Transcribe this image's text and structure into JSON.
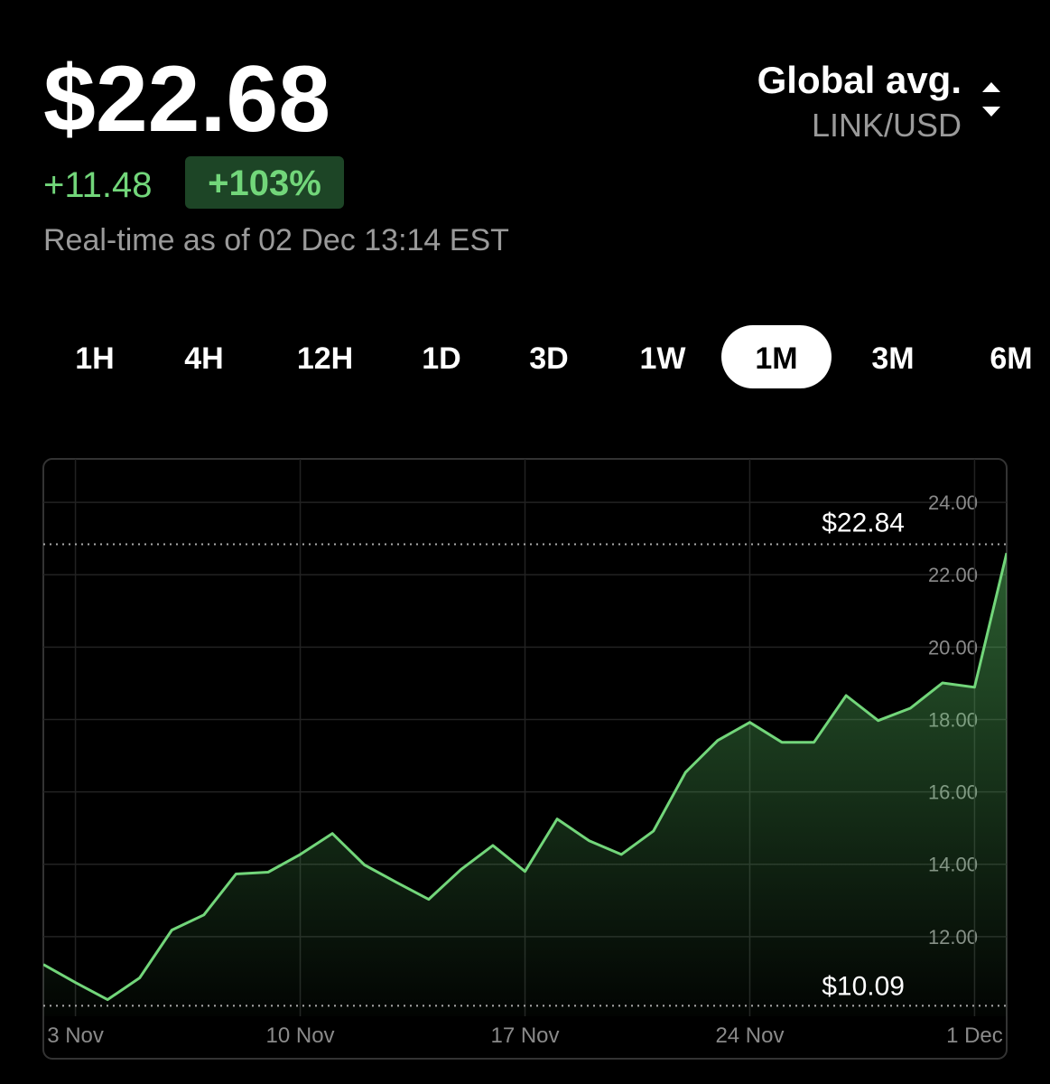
{
  "header": {
    "price": "$22.68",
    "change": "+11.48",
    "change_pct": "+103%",
    "timestamp": "Real-time as of 02 Dec 13:14 EST",
    "source": "Global avg.",
    "pair": "LINK/USD"
  },
  "tabs": {
    "items": [
      "1H",
      "4H",
      "12H",
      "1D",
      "3D",
      "1W",
      "1M",
      "3M",
      "6M"
    ],
    "selected": 6
  },
  "chart_data": {
    "type": "area",
    "categories": [
      null,
      "3 Nov",
      null,
      null,
      null,
      null,
      null,
      null,
      "10 Nov",
      null,
      null,
      null,
      null,
      null,
      null,
      "17 Nov",
      null,
      null,
      null,
      null,
      null,
      null,
      "24 Nov",
      null,
      null,
      null,
      null,
      null,
      null,
      "1 Dec",
      null
    ],
    "values": [
      11.23,
      10.73,
      10.26,
      10.86,
      12.18,
      12.6,
      13.73,
      13.78,
      14.27,
      14.85,
      13.98,
      13.5,
      13.03,
      13.85,
      14.52,
      13.8,
      15.25,
      14.65,
      14.27,
      14.92,
      16.54,
      17.42,
      17.92,
      17.37,
      17.37,
      18.66,
      17.97,
      18.31,
      19.01,
      18.89,
      22.6
    ],
    "color": "#72d67a",
    "ylim": [
      9.8,
      25.2
    ],
    "yticks": [
      {
        "value": 12,
        "label": "12.00"
      },
      {
        "value": 14,
        "label": "14.00"
      },
      {
        "value": 16,
        "label": "16.00"
      },
      {
        "value": 18,
        "label": "18.00"
      },
      {
        "value": 20,
        "label": "20.00"
      },
      {
        "value": 22,
        "label": "22.00"
      },
      {
        "value": 24,
        "label": "24.00"
      }
    ],
    "high": {
      "value": 22.84,
      "label": "$22.84"
    },
    "low": {
      "value": 10.09,
      "label": "$10.09"
    },
    "grid": true
  }
}
